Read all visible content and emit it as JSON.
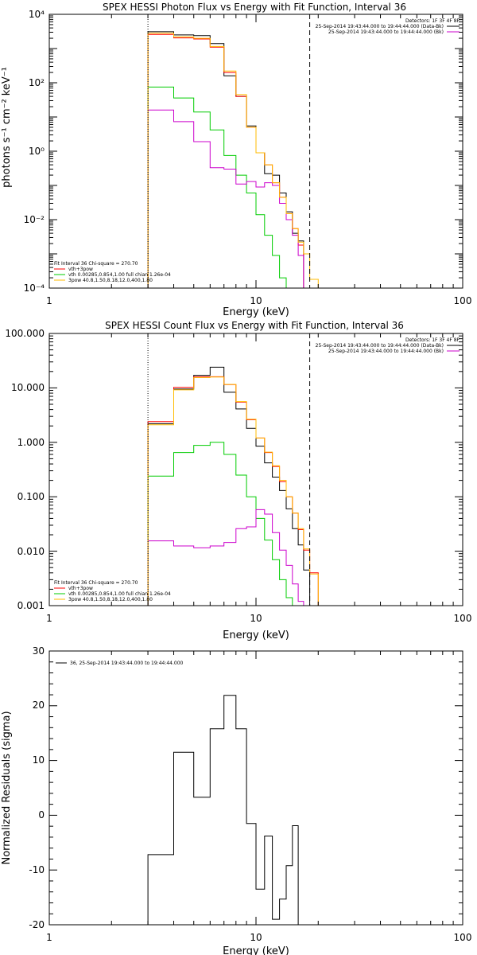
{
  "chart_data": [
    {
      "type": "line",
      "title": "SPEX HESSI Photon Flux vs Energy with Fit Function, Interval 36",
      "xlabel": "Energy (keV)",
      "ylabel": "photons s⁻¹ cm⁻² keV⁻¹",
      "xscale": "log",
      "yscale": "log",
      "xlim": [
        1,
        100
      ],
      "ylim": [
        0.0001,
        10000
      ],
      "xticks": [
        "1",
        "10",
        "100"
      ],
      "yticks": [
        "10⁻⁴",
        "10⁻²",
        "10⁰",
        "10²",
        "10⁴"
      ],
      "vlines": [
        {
          "x": 3.0,
          "style": "dotted"
        },
        {
          "x": 18.2,
          "style": "dashed"
        }
      ],
      "legend_top_right": [
        "Detectors: 1F 3F 4F 8F",
        "25-Sep-2014 19:43:44.000 to 19:44:44.000 (Data-Bk)",
        "25-Sep-2014 19:43:44.000 to 19:44:44.000 (Bk)"
      ],
      "legend_bottom_left": [
        "Fit Interval 36   Chi-square = 270.70",
        "vth+3pow",
        "vth 0.00285,0.854,1.00  full chian 1.26e-04",
        "3pow 40.8,1.50,8.18,12.0,400,1.80"
      ],
      "x_edges": [
        3.0,
        4.0,
        5.0,
        6.0,
        7.0,
        8.0,
        9.0,
        10.0,
        11.0,
        12.0,
        13.0,
        14.0,
        15.0,
        16.0,
        17.0,
        18.2,
        20.0,
        22.0
      ],
      "series": [
        {
          "color": "#000000",
          "values": [
            3100,
            2500,
            2400,
            1400,
            160,
            40,
            5.5,
            0.9,
            0.22,
            0.2,
            0.06,
            0.017,
            0.004,
            0.0024,
            null,
            null,
            null
          ]
        },
        {
          "color": "#ff0000",
          "values": [
            2600,
            2050,
            1900,
            1100,
            200,
            40,
            5.0,
            0.9,
            0.4,
            0.12,
            0.045,
            0.015,
            0.0055,
            0.0018,
            null,
            null,
            null
          ]
        },
        {
          "color": "#00cc00",
          "values": [
            75,
            36,
            14,
            4.2,
            0.75,
            0.2,
            0.06,
            0.014,
            0.0035,
            0.0009,
            0.0002,
            null,
            null,
            null,
            null,
            null,
            null
          ]
        },
        {
          "color": "#cc00cc",
          "values": [
            16,
            7.3,
            1.9,
            0.33,
            0.3,
            0.11,
            0.13,
            0.09,
            0.12,
            0.1,
            0.03,
            0.01,
            0.0035,
            0.0009,
            null,
            null,
            null
          ]
        },
        {
          "color": "#ffbb00",
          "values": [
            2800,
            2200,
            2000,
            1150,
            220,
            45,
            5.0,
            0.9,
            0.4,
            0.12,
            0.045,
            0.015,
            0.0055,
            0.0022,
            0.001,
            0.00018,
            0.0001
          ]
        }
      ]
    },
    {
      "type": "line",
      "title": "SPEX HESSI Count Flux vs Energy with Fit Function, Interval 36",
      "xlabel": "Energy (keV)",
      "xscale": "log",
      "yscale": "log",
      "xlim": [
        1,
        100
      ],
      "ylim": [
        0.001,
        100
      ],
      "xticks": [
        "1",
        "10",
        "100"
      ],
      "yticks": [
        "0.001",
        "0.010",
        "0.100",
        "1.000",
        "10.000",
        "100.000"
      ],
      "vlines": [
        {
          "x": 3.0,
          "style": "dotted"
        },
        {
          "x": 18.2,
          "style": "dashed"
        }
      ],
      "legend_top_right": [
        "Detectors: 1F 3F 4F 8F",
        "25-Sep-2014 19:43:44.000 to 19:44:44.000 (Data-Bk)",
        "25-Sep-2014 19:43:44.000 to 19:44:44.000 (Bk)"
      ],
      "legend_bottom_left": [
        "Fit Interval 36   Chi-square = 270.70",
        "vth+3pow",
        "vth 0.00285,0.854,1.00  full chian 1.26e-04",
        "3pow 40.8,1.50,8.18,12.0,400,1.80"
      ],
      "x_edges": [
        3.0,
        4.0,
        5.0,
        6.0,
        7.0,
        8.0,
        9.0,
        10.0,
        11.0,
        12.0,
        13.0,
        14.0,
        15.0,
        16.0,
        17.0,
        18.2,
        20.0,
        22.0
      ],
      "series": [
        {
          "color": "#000000",
          "values": [
            2.2,
            9.5,
            17,
            24,
            8.3,
            4.1,
            1.8,
            0.85,
            0.42,
            0.23,
            0.13,
            0.06,
            0.026,
            0.013,
            0.0045,
            null,
            null
          ]
        },
        {
          "color": "#ff0000",
          "values": [
            2.4,
            10.2,
            16,
            16,
            11.5,
            5.5,
            2.6,
            1.2,
            0.65,
            0.36,
            0.19,
            0.1,
            0.05,
            0.025,
            0.0105,
            0.004,
            null
          ]
        },
        {
          "color": "#00cc00",
          "values": [
            0.24,
            0.65,
            0.88,
            1.0,
            0.6,
            0.25,
            0.1,
            0.04,
            0.016,
            0.007,
            0.003,
            0.0014,
            null,
            null,
            null,
            null,
            null
          ]
        },
        {
          "color": "#cc00cc",
          "values": [
            0.0155,
            0.0125,
            0.0115,
            0.0125,
            0.0145,
            0.026,
            0.028,
            0.058,
            0.048,
            0.022,
            0.0105,
            0.0055,
            0.0025,
            0.0012,
            null,
            null,
            null
          ]
        },
        {
          "color": "#ffbb00",
          "values": [
            2.1,
            9.2,
            15.5,
            15.8,
            11.6,
            5.6,
            2.65,
            1.2,
            0.66,
            0.37,
            0.2,
            0.1,
            0.05,
            0.026,
            0.011,
            0.0038,
            0.001
          ]
        }
      ]
    },
    {
      "type": "line",
      "xlabel": "Energy (keV)",
      "ylabel": "Normalized Residuals (sigma)",
      "xscale": "log",
      "yscale": "linear",
      "xlim": [
        1,
        100
      ],
      "ylim": [
        -20,
        30
      ],
      "xticks": [
        "1",
        "10",
        "100"
      ],
      "yticks": [
        "-20",
        "-10",
        "0",
        "10",
        "20",
        "30"
      ],
      "legend_top_left": [
        "36, 25-Sep-2014 19:43:44.000 to 19:44:44.000"
      ],
      "x_edges": [
        3.0,
        4.0,
        5.0,
        6.0,
        7.0,
        8.0,
        9.0,
        10.0,
        11.0,
        12.0,
        13.0,
        14.0,
        15.0,
        16.0,
        17.0,
        18.2
      ],
      "series": [
        {
          "color": "#000000",
          "values": [
            -7.2,
            11.5,
            3.3,
            15.8,
            21.9,
            15.8,
            -1.5,
            -13.5,
            -3.8,
            -19.0,
            -15.3,
            -9.2,
            -1.9,
            null,
            null
          ]
        }
      ]
    }
  ]
}
